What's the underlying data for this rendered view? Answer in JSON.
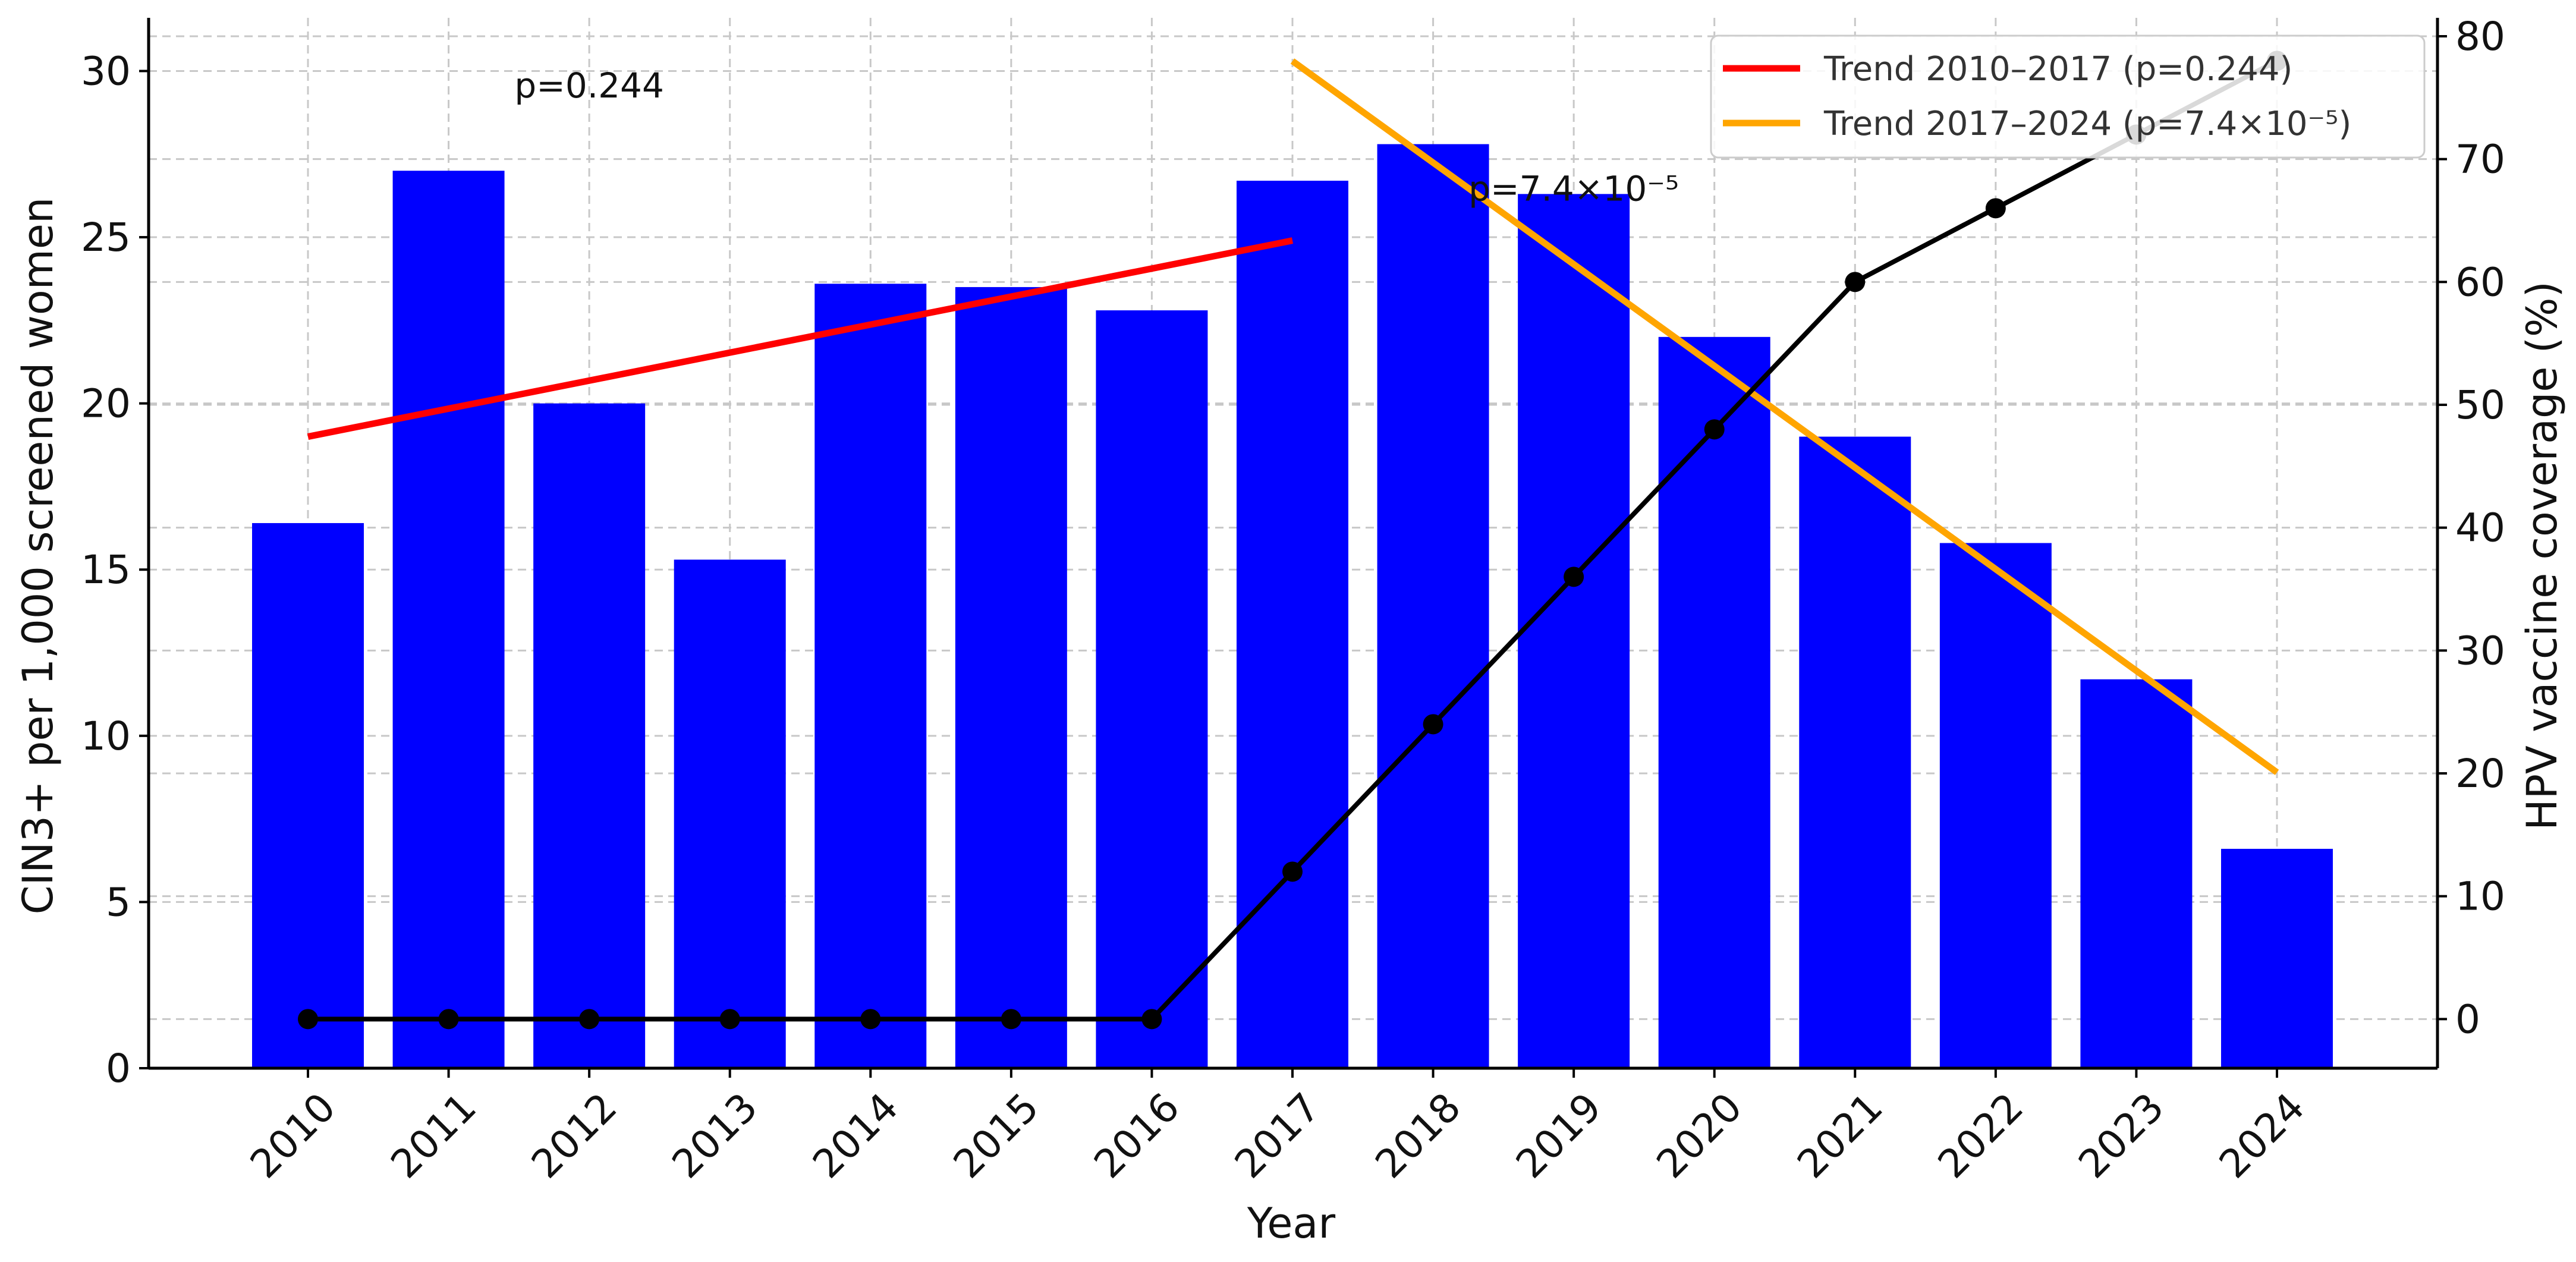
{
  "chart_data": {
    "type": "bar",
    "title": "",
    "xlabel": "Year",
    "ylabel": "CIN3+ per 1,000 screened women",
    "y2label": "HPV vaccine coverage (%)",
    "categories": [
      "2010",
      "2011",
      "2012",
      "2013",
      "2014",
      "2015",
      "2016",
      "2017",
      "2018",
      "2019",
      "2020",
      "2021",
      "2022",
      "2023",
      "2024"
    ],
    "ylim": [
      0,
      31.6
    ],
    "y2lim": [
      -4,
      81.5
    ],
    "yticks": [
      0,
      5,
      10,
      15,
      20,
      25,
      30
    ],
    "y2ticks": [
      0,
      10,
      20,
      30,
      40,
      50,
      60,
      70,
      80
    ],
    "grid": true,
    "legend_position": "top-right",
    "bar_series": {
      "axis": "left",
      "color": "#0000ff",
      "values": [
        16.4,
        27.0,
        20.0,
        15.3,
        23.6,
        23.5,
        22.8,
        26.7,
        27.8,
        26.3,
        22.0,
        19.0,
        15.8,
        11.7,
        6.6
      ]
    },
    "line_series": {
      "axis": "right",
      "color": "#000000",
      "values": [
        0,
        0,
        0,
        0,
        0,
        0,
        0,
        12,
        24,
        36,
        48,
        60,
        66,
        72,
        78
      ]
    },
    "trend_lines": [
      {
        "name": "Trend 2010–2017 (p=0.244)",
        "color": "#ff0000",
        "axis": "left",
        "x": [
          "2010",
          "2017"
        ],
        "y": [
          19.0,
          24.9
        ]
      },
      {
        "name": "Trend 2017–2024 (p=7.4×10⁻⁵)",
        "color": "#ffa500",
        "axis": "left",
        "x": [
          "2017",
          "2024"
        ],
        "y": [
          30.3,
          8.9
        ]
      }
    ],
    "annotations": [
      {
        "text": "p=0.244",
        "x": "2012",
        "y": 29.2
      },
      {
        "text": "p=7.4×10⁻⁵",
        "x": "2019",
        "y": 26.1
      }
    ]
  }
}
